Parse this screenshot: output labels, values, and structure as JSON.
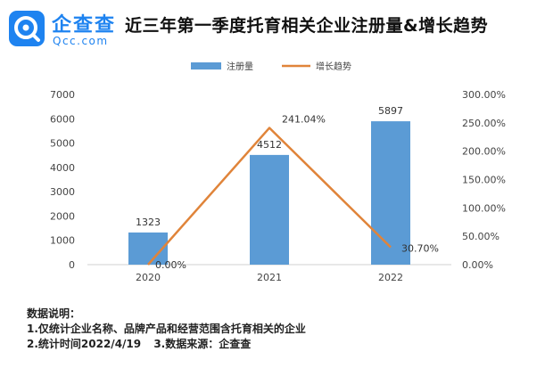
{
  "logo": {
    "name": "企查查",
    "domain": "Qcc.com",
    "brand_color": "#1e83f0"
  },
  "header": {
    "title": "近三年第一季度托育相关企业注册量&增长趋势"
  },
  "chart_data": {
    "type": "bar",
    "categories": [
      "2020",
      "2021",
      "2022"
    ],
    "series": [
      {
        "name": "注册量",
        "kind": "bar",
        "axis": "left",
        "color": "#5b9bd5",
        "values": [
          1323,
          4512,
          5897
        ],
        "value_labels": [
          "1323",
          "4512",
          "5897"
        ]
      },
      {
        "name": "增长趋势",
        "kind": "line",
        "axis": "right",
        "color": "#e0843a",
        "values": [
          0.0,
          241.04,
          30.7
        ],
        "value_labels": [
          "0.00%",
          "241.04%",
          "30.70%"
        ]
      }
    ],
    "ylim": [
      0,
      7000
    ],
    "yticks": [
      "0",
      "1000",
      "2000",
      "3000",
      "4000",
      "5000",
      "6000",
      "7000"
    ],
    "y2lim": [
      0,
      300
    ],
    "y2ticks": [
      "0.00%",
      "50.00%",
      "100.00%",
      "150.00%",
      "200.00%",
      "250.00%",
      "300.00%"
    ],
    "grid": false,
    "legend_position": "top-center"
  },
  "notes": {
    "heading": "数据说明：",
    "line1": "1.仅统计企业名称、品牌产品和经营范围含托育相关的企业",
    "line2a": "2.统计时间2022/4/19",
    "line2b": "3.数据来源：企查查"
  }
}
